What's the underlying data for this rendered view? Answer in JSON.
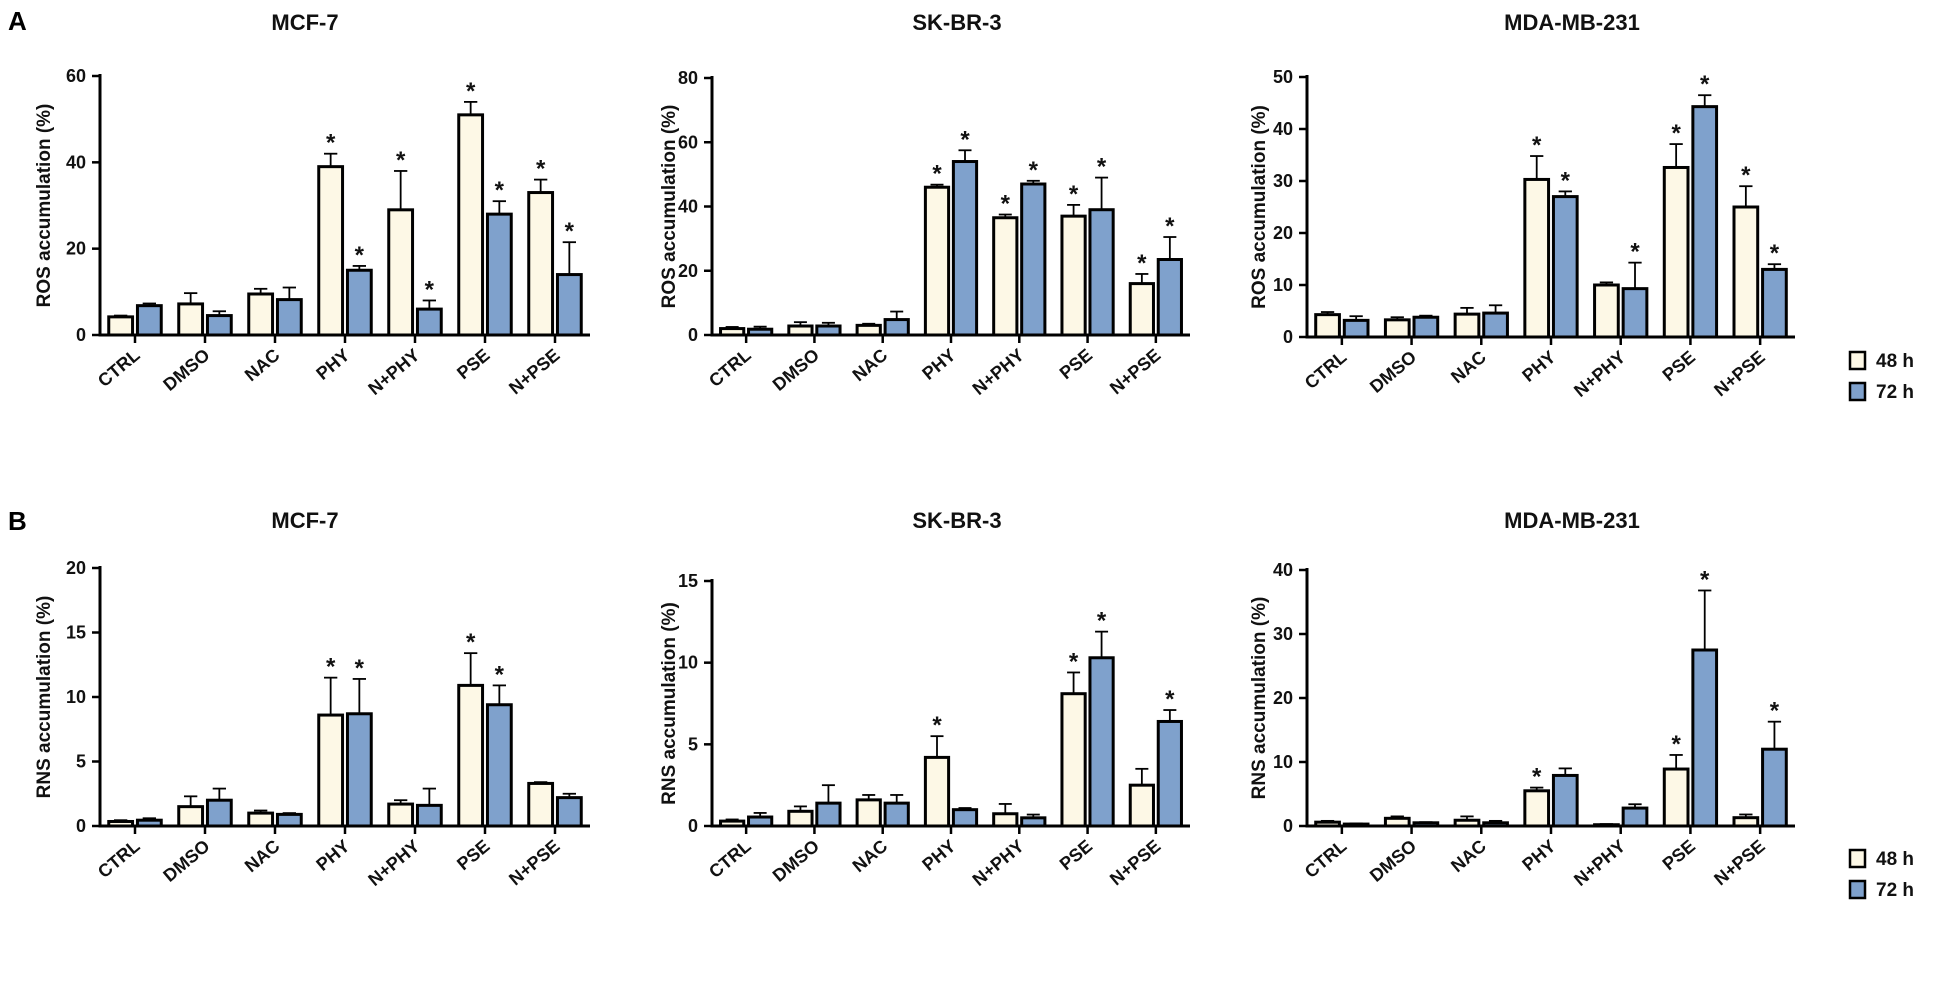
{
  "panel_labels": [
    "A",
    "B"
  ],
  "legend": [
    {
      "label": "48 h",
      "color": "#fdf8e6"
    },
    {
      "label": "72 h",
      "color": "#7fa1cc"
    }
  ],
  "chart_data": [
    {
      "type": "bar",
      "title": "MCF-7",
      "ylabel": "ROS accumulation (%)",
      "ylim": [
        0,
        60
      ],
      "yticks": [
        0,
        20,
        40,
        60
      ],
      "categories": [
        "CTRL",
        "DMSO",
        "NAC",
        "PHY",
        "N+PHY",
        "PSE",
        "N+PSE"
      ],
      "series": [
        {
          "name": "48 h",
          "values": [
            4.2,
            7.2,
            9.5,
            39,
            29,
            51,
            33
          ],
          "errors": [
            0.3,
            2.5,
            1.2,
            3.0,
            9.0,
            3.0,
            3.0
          ],
          "significant": [
            false,
            false,
            false,
            true,
            true,
            true,
            true
          ]
        },
        {
          "name": "72 h",
          "values": [
            6.8,
            4.5,
            8.2,
            15,
            6,
            28,
            14
          ],
          "errors": [
            0.5,
            1.0,
            2.8,
            1.0,
            2.0,
            3.0,
            7.5
          ],
          "significant": [
            false,
            false,
            false,
            true,
            true,
            true,
            true
          ]
        }
      ]
    },
    {
      "type": "bar",
      "title": "SK-BR-3",
      "ylabel": "ROS accumulation (%)",
      "ylim": [
        0,
        80
      ],
      "yticks": [
        0,
        20,
        40,
        60,
        80
      ],
      "categories": [
        "CTRL",
        "DMSO",
        "NAC",
        "PHY",
        "N+PHY",
        "PSE",
        "N+PSE"
      ],
      "series": [
        {
          "name": "48 h",
          "values": [
            2.0,
            2.8,
            3.0,
            46,
            36.5,
            37,
            16
          ],
          "errors": [
            0.5,
            1.2,
            0.5,
            0.8,
            1.0,
            3.5,
            3.0
          ],
          "significant": [
            false,
            false,
            false,
            true,
            true,
            true,
            true
          ]
        },
        {
          "name": "72 h",
          "values": [
            1.8,
            2.8,
            4.8,
            54,
            47,
            39,
            23.5
          ],
          "errors": [
            0.8,
            1.0,
            2.5,
            3.5,
            1.0,
            10,
            7.0
          ],
          "significant": [
            false,
            false,
            false,
            true,
            true,
            true,
            true
          ]
        }
      ]
    },
    {
      "type": "bar",
      "title": "MDA-MB-231",
      "ylabel": "ROS accumulation (%)",
      "ylim": [
        0,
        50
      ],
      "yticks": [
        0,
        10,
        20,
        30,
        40,
        50
      ],
      "categories": [
        "CTRL",
        "DMSO",
        "NAC",
        "PHY",
        "N+PHY",
        "PSE",
        "N+PSE"
      ],
      "series": [
        {
          "name": "48 h",
          "values": [
            4.3,
            3.3,
            4.4,
            30.3,
            10,
            32.6,
            25
          ],
          "errors": [
            0.5,
            0.5,
            1.2,
            4.5,
            0.5,
            4.5,
            4.0
          ],
          "significant": [
            false,
            false,
            false,
            true,
            false,
            true,
            true
          ]
        },
        {
          "name": "72 h",
          "values": [
            3.2,
            3.8,
            4.6,
            27,
            9.3,
            44.3,
            13
          ],
          "errors": [
            0.8,
            0.3,
            1.5,
            1.0,
            5.0,
            2.2,
            1.0
          ],
          "significant": [
            false,
            false,
            false,
            true,
            true,
            true,
            true
          ]
        }
      ]
    },
    {
      "type": "bar",
      "title": "MCF-7",
      "ylabel": "RNS accumulation (%)",
      "ylim": [
        0,
        20
      ],
      "yticks": [
        0,
        5,
        10,
        15,
        20
      ],
      "categories": [
        "CTRL",
        "DMSO",
        "NAC",
        "PHY",
        "N+PHY",
        "PSE",
        "N+PSE"
      ],
      "series": [
        {
          "name": "48 h",
          "values": [
            0.35,
            1.5,
            1.0,
            8.6,
            1.7,
            10.9,
            3.3
          ],
          "errors": [
            0.1,
            0.8,
            0.2,
            2.9,
            0.3,
            2.5,
            0.1
          ],
          "significant": [
            false,
            false,
            false,
            true,
            false,
            true,
            false
          ]
        },
        {
          "name": "72 h",
          "values": [
            0.45,
            2.0,
            0.9,
            8.7,
            1.6,
            9.4,
            2.2
          ],
          "errors": [
            0.15,
            0.9,
            0.1,
            2.7,
            1.3,
            1.5,
            0.3
          ],
          "significant": [
            false,
            false,
            false,
            true,
            false,
            true,
            false
          ]
        }
      ]
    },
    {
      "type": "bar",
      "title": "SK-BR-3",
      "ylabel": "RNS accumulation (%)",
      "ylim": [
        0,
        15
      ],
      "yticks": [
        0,
        5,
        10,
        15
      ],
      "categories": [
        "CTRL",
        "DMSO",
        "NAC",
        "PHY",
        "N+PHY",
        "PSE",
        "N+PSE"
      ],
      "series": [
        {
          "name": "48 h",
          "values": [
            0.3,
            0.9,
            1.6,
            4.2,
            0.75,
            8.1,
            2.5
          ],
          "errors": [
            0.1,
            0.3,
            0.3,
            1.3,
            0.6,
            1.3,
            1.0
          ],
          "significant": [
            false,
            false,
            false,
            true,
            false,
            true,
            false
          ]
        },
        {
          "name": "72 h",
          "values": [
            0.55,
            1.4,
            1.4,
            1.0,
            0.5,
            10.3,
            6.4
          ],
          "errors": [
            0.25,
            1.1,
            0.5,
            0.1,
            0.2,
            1.6,
            0.7
          ],
          "significant": [
            false,
            false,
            false,
            false,
            false,
            true,
            true
          ]
        }
      ]
    },
    {
      "type": "bar",
      "title": "MDA-MB-231",
      "ylabel": "RNS accumulation (%)",
      "ylim": [
        0,
        40
      ],
      "yticks": [
        0,
        10,
        20,
        30,
        40
      ],
      "categories": [
        "CTRL",
        "DMSO",
        "NAC",
        "PHY",
        "N+PHY",
        "PSE",
        "N+PSE"
      ],
      "series": [
        {
          "name": "48 h",
          "values": [
            0.6,
            1.2,
            0.9,
            5.5,
            0.2,
            8.9,
            1.3
          ],
          "errors": [
            0.2,
            0.3,
            0.6,
            0.5,
            0.1,
            2.2,
            0.5
          ],
          "significant": [
            false,
            false,
            false,
            true,
            false,
            true,
            false
          ]
        },
        {
          "name": "72 h",
          "values": [
            0.3,
            0.5,
            0.5,
            7.9,
            2.8,
            27.5,
            12
          ],
          "errors": [
            0.1,
            0.1,
            0.3,
            1.1,
            0.6,
            9.3,
            4.3
          ],
          "significant": [
            false,
            false,
            false,
            false,
            false,
            true,
            true
          ]
        }
      ]
    }
  ]
}
